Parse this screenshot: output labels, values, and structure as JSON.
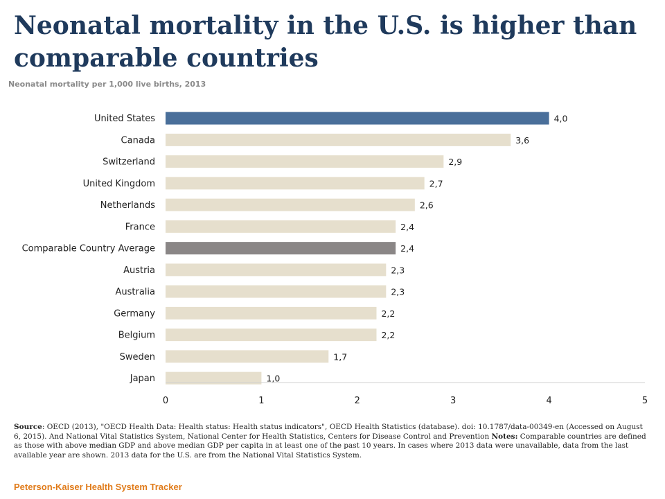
{
  "title": "Neonatal mortality in the U.S. is higher than comparable countries",
  "subtitle": "Neonatal mortality per 1,000 live births, 2013",
  "chart_data": {
    "type": "bar",
    "orientation": "horizontal",
    "categories": [
      "United States",
      "Canada",
      "Switzerland",
      "United Kingdom",
      "Netherlands",
      "France",
      "Comparable Country Average",
      "Austria",
      "Australia",
      "Germany",
      "Belgium",
      "Sweden",
      "Japan"
    ],
    "values": [
      4.0,
      3.6,
      2.9,
      2.7,
      2.6,
      2.4,
      2.4,
      2.3,
      2.3,
      2.2,
      2.2,
      1.7,
      1.0
    ],
    "value_labels": [
      "4,0",
      "3,6",
      "2,9",
      "2,7",
      "2,6",
      "2,4",
      "2,4",
      "2,3",
      "2,3",
      "2,2",
      "2,2",
      "1,7",
      "1,0"
    ],
    "title": "Neonatal mortality per 1,000 live births, 2013",
    "xlabel": "",
    "ylabel": "",
    "xlim": [
      0,
      5
    ],
    "x_ticks": [
      "0",
      "1",
      "2",
      "3",
      "4",
      "5"
    ],
    "grid": false,
    "colors": {
      "default": "#e6dfcd",
      "highlight": "#4a6f9a",
      "average": "#8a8686"
    },
    "highlight_index": 0,
    "average_index": 6
  },
  "source": {
    "label": "Source",
    "text1": ": OECD (2013), \"OECD Health Data: Health status: Health status indicators\", OECD Health Statistics (database). doi: 10.1787/data-00349-en (Accessed on August 6, 2015). And National Vital Statistics System, National Center for Health Statistics, Centers for Disease Control and Prevention ",
    "notes_label": "Notes:",
    "text2": " Comparable countries are defined as those with above median GDP and above median GDP per capita in at least one of the past 10 years. In cases where 2013 data were unavailable, data from the last available year are shown. 2013 data for the U.S. are from the National Vital Statistics System."
  },
  "brand": "Peterson-Kaiser Health System Tracker"
}
